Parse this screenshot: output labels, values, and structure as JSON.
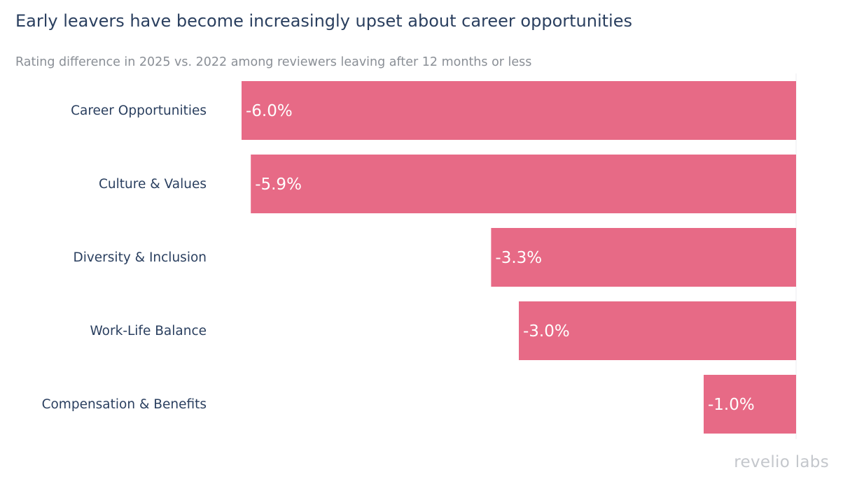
{
  "chart_data": {
    "type": "bar",
    "orientation": "horizontal",
    "title": "Early leavers have become increasingly upset about career opportunities",
    "subtitle": "Rating difference in 2025 vs. 2022 among reviewers leaving after 12 months or less",
    "categories": [
      "Career Opportunities",
      "Culture & Values",
      "Diversity & Inclusion",
      "Work-Life Balance",
      "Compensation & Benefits"
    ],
    "values": [
      -6.0,
      -5.9,
      -3.3,
      -3.0,
      -1.0
    ],
    "value_labels": [
      "-6.0%",
      "-5.9%",
      "-3.3%",
      "-3.0%",
      "-1.0%"
    ],
    "xlim": [
      -6.0,
      0
    ],
    "bar_color": "#e76a86",
    "grid": false,
    "legend": "none"
  },
  "branding": {
    "logo_text": "revelio labs",
    "logo_color": "#c4c7cc"
  }
}
